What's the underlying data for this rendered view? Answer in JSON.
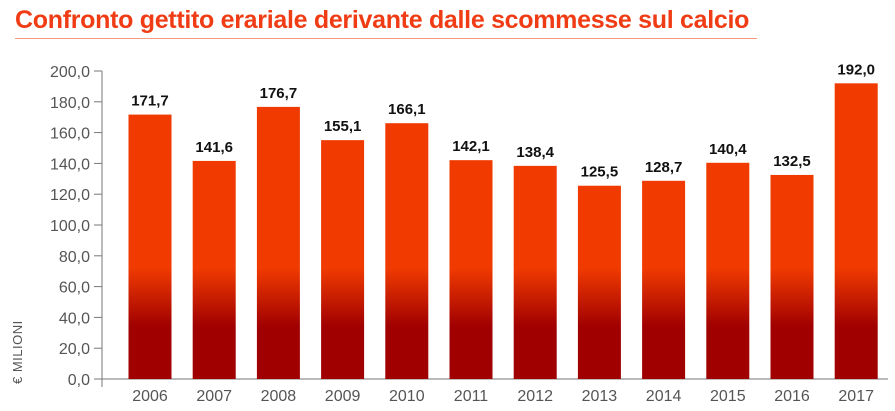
{
  "chart_data": {
    "type": "bar",
    "title": "Confronto gettito erariale derivante dalle scommesse sul calcio",
    "ylabel": "€ MILIONI",
    "xlabel": "",
    "categories": [
      "2006",
      "2007",
      "2008",
      "2009",
      "2010",
      "2011",
      "2012",
      "2013",
      "2014",
      "2015",
      "2016",
      "2017"
    ],
    "values": [
      171.7,
      141.6,
      176.7,
      155.1,
      166.1,
      142.1,
      138.4,
      125.5,
      128.7,
      140.4,
      132.5,
      192.0
    ],
    "data_labels": [
      "171,7",
      "141,6",
      "176,7",
      "155,1",
      "166,1",
      "142,1",
      "138,4",
      "125,5",
      "128,7",
      "140,4",
      "132,5",
      "192,0"
    ],
    "ylim": [
      0,
      200
    ],
    "yticks": [
      "0,0",
      "20,0",
      "40,0",
      "60,0",
      "80,0",
      "100,0",
      "120,0",
      "140,0",
      "160,0",
      "180,0",
      "200,0"
    ],
    "grid": false,
    "colors": {
      "bar_top": "#f03a00",
      "bar_bottom": "#a00000",
      "title": "#f03c14"
    }
  }
}
